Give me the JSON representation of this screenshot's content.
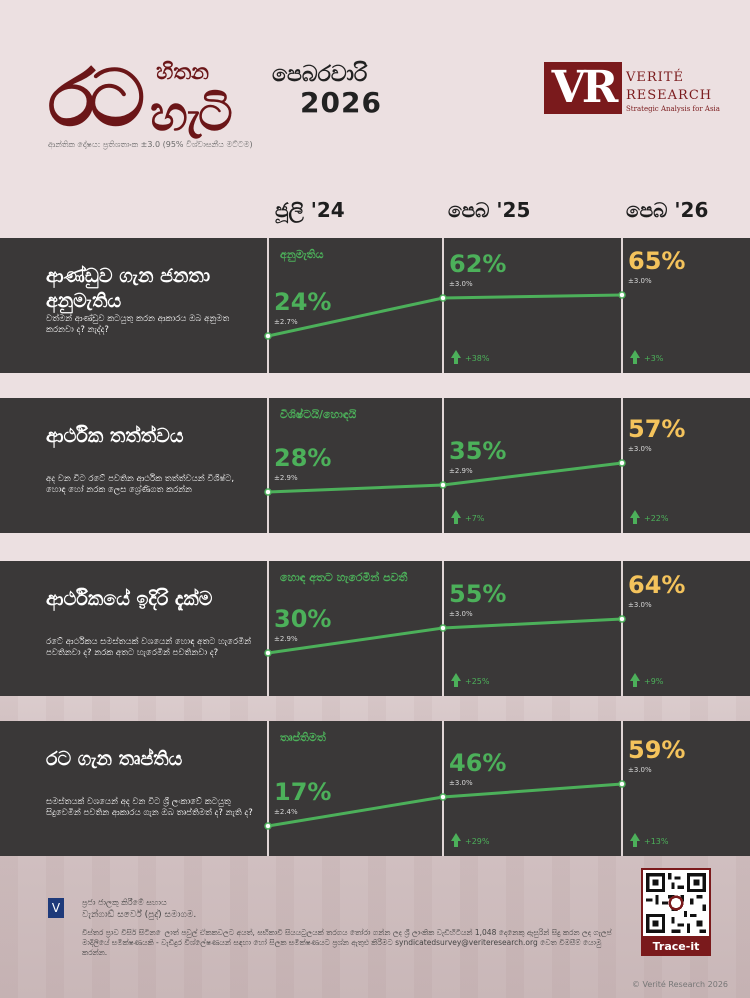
{
  "header": {
    "logo_rata": "රට",
    "logo_hithana": "හිතන",
    "logo_hati": "හැටි",
    "month": "පෙබරවාරි",
    "year": "2026",
    "margin_note": "ආන්තික දෝෂය: ප්‍රතිශතාංක ±3.0 (95% විශ්වාසනීය මට්ටම)"
  },
  "brand": {
    "mark": "VR",
    "word1": "VERITÉ",
    "word2": "RESEARCH",
    "tagline": "Strategic Analysis for Asia"
  },
  "columns": [
    "ජූලි '24",
    "පෙබ '25",
    "පෙබ '26"
  ],
  "colors": {
    "panel": "#3a3838",
    "green": "#4cb05a",
    "gold": "#f4c35c",
    "brand": "#7a1a1c",
    "background": "#ece0e1"
  },
  "chart_data": {
    "type": "line",
    "x": [
      "ජූලි '24",
      "පෙබ '25",
      "පෙබ '26"
    ],
    "ylim": [
      0,
      100
    ],
    "series": [
      {
        "name": "ආණ්ඩුව ගැන ජනතා අනුමැතිය",
        "question": "වත්මන් ආණ්ඩුව කටයුතු කරන ආකාරය ඔබ අනුමත කරනවා ද? නැද්ද?",
        "tag": "අනුමැතිය",
        "values": [
          24,
          62,
          65
        ],
        "labels": [
          "24%",
          "62%",
          "65%"
        ],
        "moe": [
          "±2.7%",
          "±3.0%",
          "±3.0%"
        ],
        "changes": [
          "+38%",
          "+3%"
        ]
      },
      {
        "name": "ආර්ථික තත්ත්වය",
        "question": "අද වන විට රටේ පවතින ආර්ථික තත්ත්වයන් විශිෂ්ට, හොඳ හෝ නරක ලෙස ශ්‍රේණිගත කරන්න",
        "tag": "විශිෂ්ටයි/හොඳයි",
        "values": [
          28,
          35,
          57
        ],
        "labels": [
          "28%",
          "35%",
          "57%"
        ],
        "moe": [
          "±2.9%",
          "±2.9%",
          "±3.0%"
        ],
        "changes": [
          "+7%",
          "+22%"
        ]
      },
      {
        "name": "ආර්ථිකයේ ඉදිරි දැක්ම",
        "question": "රටේ ආර්ථිකය සමස්තයක් වශයෙන් හොඳ අතට හැරෙමින් පවතිනවා ද? නරක අතට හැරෙමින් පවතිනවා ද?",
        "tag": "හොඳ අතට හැරෙමින් පවතී",
        "values": [
          30,
          55,
          64
        ],
        "labels": [
          "30%",
          "55%",
          "64%"
        ],
        "moe": [
          "±2.9%",
          "±3.0%",
          "±3.0%"
        ],
        "changes": [
          "+25%",
          "+9%"
        ]
      },
      {
        "name": "රට ගැන තෘප්තිය",
        "question": "සමස්තයක් වශයෙන් අද වන විට ශ්‍රී ලංකාවේ කටයුතු සිදුවෙමින් පවතින ආකාරය ගැන ඔබ තෘප්තිමත් ද? නැති ද?",
        "tag": "තෘප්තිමත්",
        "values": [
          17,
          46,
          59
        ],
        "labels": [
          "17%",
          "46%",
          "59%"
        ],
        "moe": [
          "±2.4%",
          "±3.0%",
          "±3.0%"
        ],
        "changes": [
          "+29%",
          "+13%"
        ]
      }
    ]
  },
  "footer": {
    "org_line1": "ප්‍රජා ජාලකු කිරීමේ සහාය",
    "org_line2": "වැන්ගාඩ් සර්වේ (පුද්) සමාගම.",
    "note": "විස්තර ප්‍රාව විසිර් සිටින ෙලාත් පවුල් ඒකකවලට අයත්, ඝභිකාවි සියයටුලයක් තරගය තෝරා ගන්න ලද ශ්‍රී ලාංකික වැඩිහිටියන් 1,048 දෙනෙකු ඇසුරින් සිදු කරන ලද ගැලප් මාදිලියේ සමීක්ෂණයකි - වැඩිදුර විශ්ලේෂණයන් සඳහා හෝ සිලක සමීක්ෂණයට ප්‍රශ්න ඇතුළු කිරීමට syndicatedsurvey@veriteresearch.org වෙත විමසීම් යොමු කරන්න.",
    "trace": "Trace-it",
    "copyright": "© Verité Research 2026"
  }
}
